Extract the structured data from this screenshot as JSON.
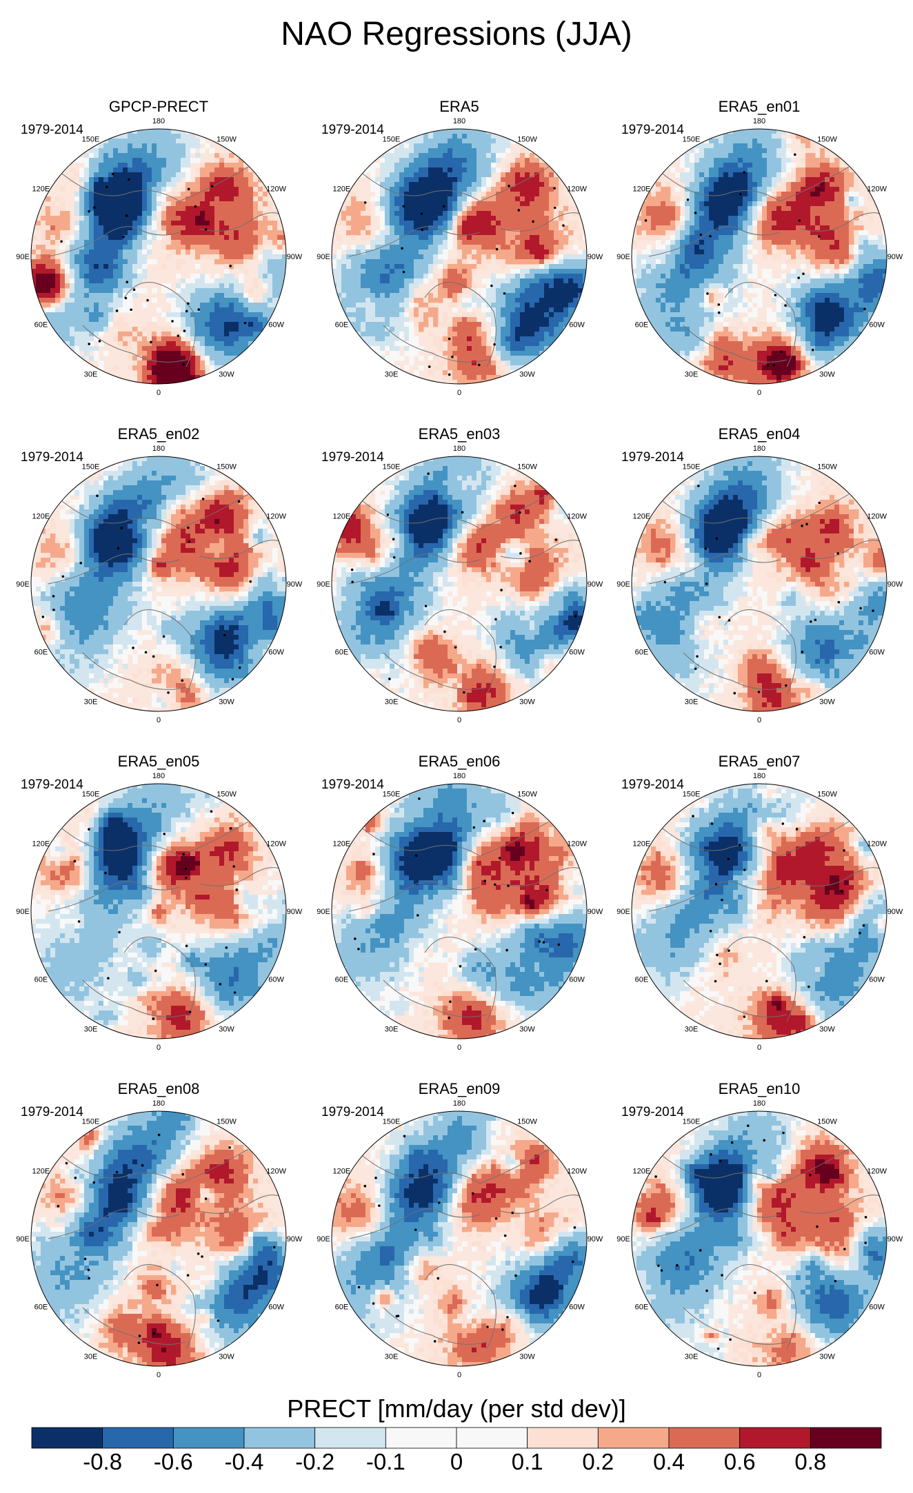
{
  "title": "NAO Regressions (JJA)",
  "period": "1979-2014",
  "panels": [
    {
      "title": "GPCP-PRECT"
    },
    {
      "title": "ERA5"
    },
    {
      "title": "ERA5_en01"
    },
    {
      "title": "ERA5_en02"
    },
    {
      "title": "ERA5_en03"
    },
    {
      "title": "ERA5_en04"
    },
    {
      "title": "ERA5_en05"
    },
    {
      "title": "ERA5_en06"
    },
    {
      "title": "ERA5_en07"
    },
    {
      "title": "ERA5_en08"
    },
    {
      "title": "ERA5_en09"
    },
    {
      "title": "ERA5_en10"
    }
  ],
  "lon_labels": [
    "180",
    "150E",
    "120E",
    "90E",
    "60E",
    "30E",
    "0",
    "30W",
    "60W",
    "90W",
    "120W",
    "150W"
  ],
  "colorbar": {
    "title": "PRECT [mm/day (per std dev)]",
    "tick_labels": [
      "-0.8",
      "-0.6",
      "-0.4",
      "-0.2",
      "-0.1",
      "0",
      "0.1",
      "0.2",
      "0.4",
      "0.6",
      "0.8"
    ],
    "colors": [
      "#0b3067",
      "#2867ac",
      "#4493c3",
      "#93c4df",
      "#d3e6f0",
      "#f8f8f8",
      "#fbe0d3",
      "#f5a98a",
      "#db6a55",
      "#b1182b",
      "#67001f"
    ]
  },
  "chart_data": {
    "type": "map",
    "projection": "north polar stereographic",
    "variable": "PRECT",
    "units": "mm/day (per std dev)",
    "season": "JJA",
    "period": "1979-2014",
    "contour_levels": [
      -0.8,
      -0.6,
      -0.4,
      -0.2,
      -0.1,
      0,
      0.1,
      0.2,
      0.4,
      0.6,
      0.8
    ],
    "datasets": [
      "GPCP-PRECT",
      "ERA5",
      "ERA5_en01",
      "ERA5_en02",
      "ERA5_en03",
      "ERA5_en04",
      "ERA5_en05",
      "ERA5_en06",
      "ERA5_en07",
      "ERA5_en08",
      "ERA5_en09",
      "ERA5_en10"
    ]
  }
}
